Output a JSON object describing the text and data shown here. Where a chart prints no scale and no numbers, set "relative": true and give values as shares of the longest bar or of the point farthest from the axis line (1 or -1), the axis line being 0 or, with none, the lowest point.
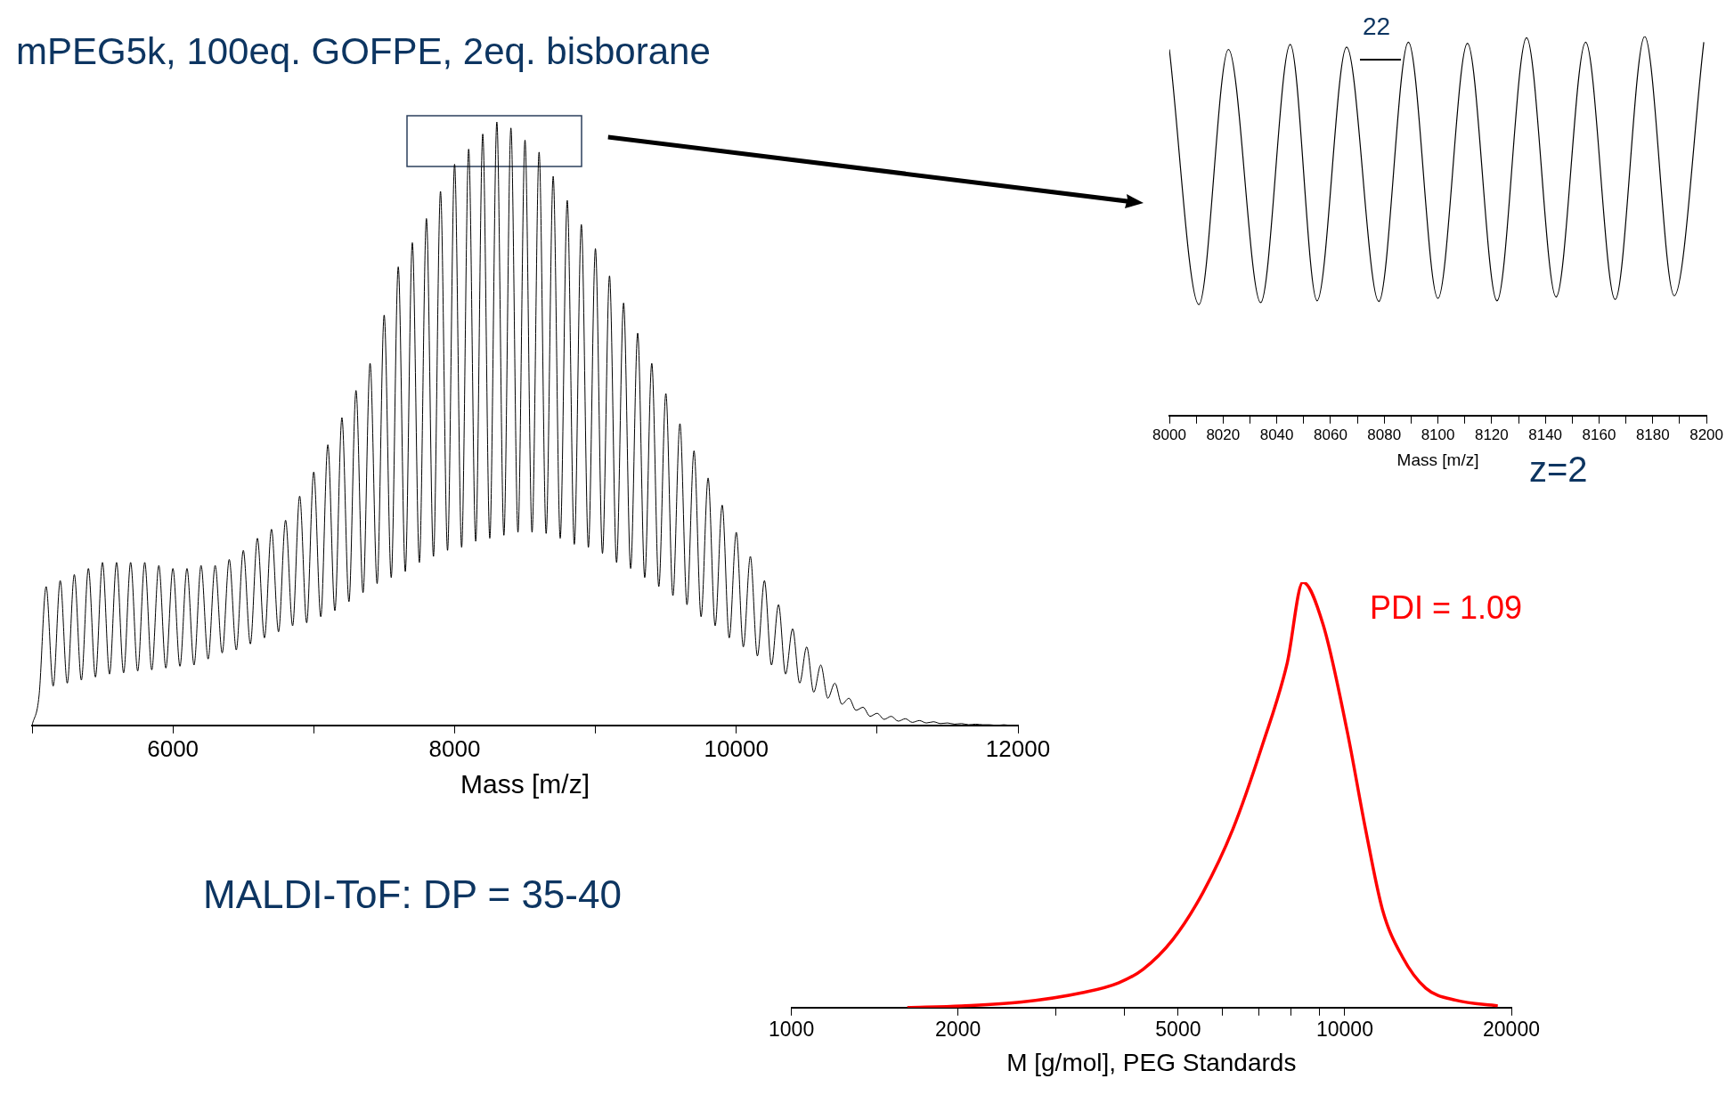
{
  "chart_data": [
    {
      "type": "line",
      "title": "mPEG5k, 100eq. GOFPE, 2eq. bisborane",
      "xlabel": "Mass [m/z]",
      "relative": true,
      "tick_labels": "x",
      "marker": "none",
      "annotations": [
        "MALDI-ToF: DP = 35-40"
      ],
      "xlim": [
        5000,
        12000
      ],
      "xticks": [
        {
          "value": 5000,
          "label": null
        },
        6000,
        {
          "value": 7000,
          "label": null
        },
        8000,
        {
          "value": 9000,
          "label": null
        },
        10000,
        {
          "value": 11000,
          "label": null
        },
        12000
      ],
      "series": [
        {
          "color": "#000000",
          "x": [
            5000,
            5050,
            5100,
            5150,
            5200,
            5250,
            5300,
            5350,
            5400,
            5450,
            5500,
            5550,
            5600,
            5650,
            5700,
            5750,
            5800,
            5850,
            5900,
            5950,
            6000,
            6050,
            6100,
            6150,
            6200,
            6250,
            6300,
            6350,
            6400,
            6450,
            6500,
            6550,
            6600,
            6650,
            6700,
            6750,
            6800,
            6850,
            6900,
            6950,
            7000,
            7050,
            7100,
            7150,
            7200,
            7250,
            7300,
            7350,
            7400,
            7450,
            7500,
            7550,
            7600,
            7650,
            7700,
            7750,
            7800,
            7850,
            7900,
            7950,
            8000,
            8050,
            8100,
            8150,
            8200,
            8250,
            8300,
            8350,
            8400,
            8450,
            8500,
            8550,
            8600,
            8650,
            8700,
            8750,
            8800,
            8850,
            8900,
            8950,
            9000,
            9050,
            9100,
            9150,
            9200,
            9250,
            9300,
            9350,
            9400,
            9450,
            9500,
            9550,
            9600,
            9650,
            9700,
            9750,
            9800,
            9850,
            9900,
            9950,
            10000,
            10050,
            10100,
            10150,
            10200,
            10250,
            10300,
            10350,
            10400,
            10450,
            10500,
            10550,
            10600,
            10650,
            10700,
            10750,
            10800,
            10850,
            10900,
            10950,
            11000,
            11050,
            11100,
            11150,
            11200,
            11250,
            11300,
            11350,
            11400,
            11450,
            11500,
            11550,
            11600,
            11650,
            11700,
            11750,
            11800,
            11850,
            11900,
            11950,
            12000
          ],
          "values": [
            0,
            0.05,
            0.23,
            0.065,
            0.24,
            0.07,
            0.25,
            0.075,
            0.26,
            0.08,
            0.27,
            0.085,
            0.27,
            0.087,
            0.27,
            0.09,
            0.27,
            0.092,
            0.265,
            0.095,
            0.26,
            0.098,
            0.26,
            0.1,
            0.265,
            0.11,
            0.265,
            0.12,
            0.275,
            0.125,
            0.29,
            0.135,
            0.31,
            0.145,
            0.325,
            0.155,
            0.34,
            0.165,
            0.38,
            0.17,
            0.42,
            0.18,
            0.465,
            0.19,
            0.51,
            0.205,
            0.555,
            0.22,
            0.6,
            0.235,
            0.68,
            0.245,
            0.76,
            0.255,
            0.8,
            0.27,
            0.84,
            0.28,
            0.885,
            0.29,
            0.93,
            0.295,
            0.955,
            0.305,
            0.98,
            0.31,
            1,
            0.315,
            0.99,
            0.32,
            0.97,
            0.32,
            0.95,
            0.318,
            0.91,
            0.31,
            0.87,
            0.3,
            0.83,
            0.295,
            0.79,
            0.285,
            0.745,
            0.27,
            0.7,
            0.26,
            0.65,
            0.245,
            0.6,
            0.23,
            0.55,
            0.215,
            0.5,
            0.2,
            0.455,
            0.18,
            0.41,
            0.165,
            0.365,
            0.145,
            0.32,
            0.13,
            0.28,
            0.115,
            0.24,
            0.1,
            0.2,
            0.085,
            0.16,
            0.07,
            0.13,
            0.055,
            0.1,
            0.045,
            0.07,
            0.035,
            0.045,
            0.025,
            0.03,
            0.015,
            0.02,
            0.01,
            0.015,
            0.007,
            0.011,
            0.005,
            0.008,
            0.004,
            0.006,
            0.003,
            0.004,
            0.002,
            0.003,
            0.001,
            0.002,
            0.001,
            0.001,
            0,
            0.001,
            0,
            0
          ]
        }
      ]
    },
    {
      "type": "line",
      "xlabel": "Mass [m/z]",
      "relative": true,
      "tick_labels": "x",
      "marker": "none",
      "annotations": [
        "22",
        "z=2"
      ],
      "xlim": [
        8000,
        8200
      ],
      "xticks": [
        8000,
        {
          "value": 8010,
          "label": null
        },
        8020,
        {
          "value": 8030,
          "label": null
        },
        8040,
        {
          "value": 8050,
          "label": null
        },
        8060,
        {
          "value": 8070,
          "label": null
        },
        8080,
        {
          "value": 8090,
          "label": null
        },
        8100,
        {
          "value": 8110,
          "label": null
        },
        8120,
        {
          "value": 8130,
          "label": null
        },
        8140,
        {
          "value": 8150,
          "label": null
        },
        8160,
        {
          "value": 8170,
          "label": null
        },
        8180,
        {
          "value": 8190,
          "label": null
        },
        8200
      ],
      "series": [
        {
          "color": "#000000",
          "x": [
            8000,
            8011,
            8022,
            8034,
            8045,
            8055,
            8066,
            8078,
            8089,
            8100,
            8111,
            8122,
            8133,
            8144,
            8155,
            8166,
            8177,
            8188,
            8199
          ],
          "values": [
            0.966,
            0.293,
            0.966,
            0.298,
            0.979,
            0.303,
            0.972,
            0.301,
            0.985,
            0.309,
            0.982,
            0.303,
            0.997,
            0.313,
            0.985,
            0.306,
            1,
            0.316,
            0.985
          ]
        }
      ]
    },
    {
      "type": "line",
      "xlabel": "M [g/mol], PEG Standards",
      "relative": true,
      "tick_labels": "x",
      "marker": "none",
      "log": "x",
      "annotations": [
        "PDI = 1.09"
      ],
      "xlim": [
        1000,
        20000
      ],
      "xticks": [
        1000,
        2000,
        {
          "value": 3000,
          "label": null
        },
        {
          "value": 4000,
          "label": null
        },
        5000,
        {
          "value": 6000,
          "label": null
        },
        {
          "value": 7000,
          "label": null
        },
        {
          "value": 8000,
          "label": null
        },
        {
          "value": 9000,
          "label": null
        },
        10000,
        20000
      ],
      "series": [
        {
          "color": "#ff0000",
          "x": [
            1620,
            2030,
            2610,
            3360,
            3900,
            4320,
            4890,
            5540,
            6280,
            7110,
            7870,
            8400,
            9140,
            10100,
            10900,
            11700,
            12700,
            14000,
            15900,
            18900
          ],
          "values": [
            0,
            0.004,
            0.013,
            0.035,
            0.058,
            0.09,
            0.16,
            0.27,
            0.42,
            0.62,
            0.81,
            1,
            0.9,
            0.65,
            0.42,
            0.23,
            0.12,
            0.046,
            0.017,
            0.004
          ]
        }
      ]
    }
  ]
}
